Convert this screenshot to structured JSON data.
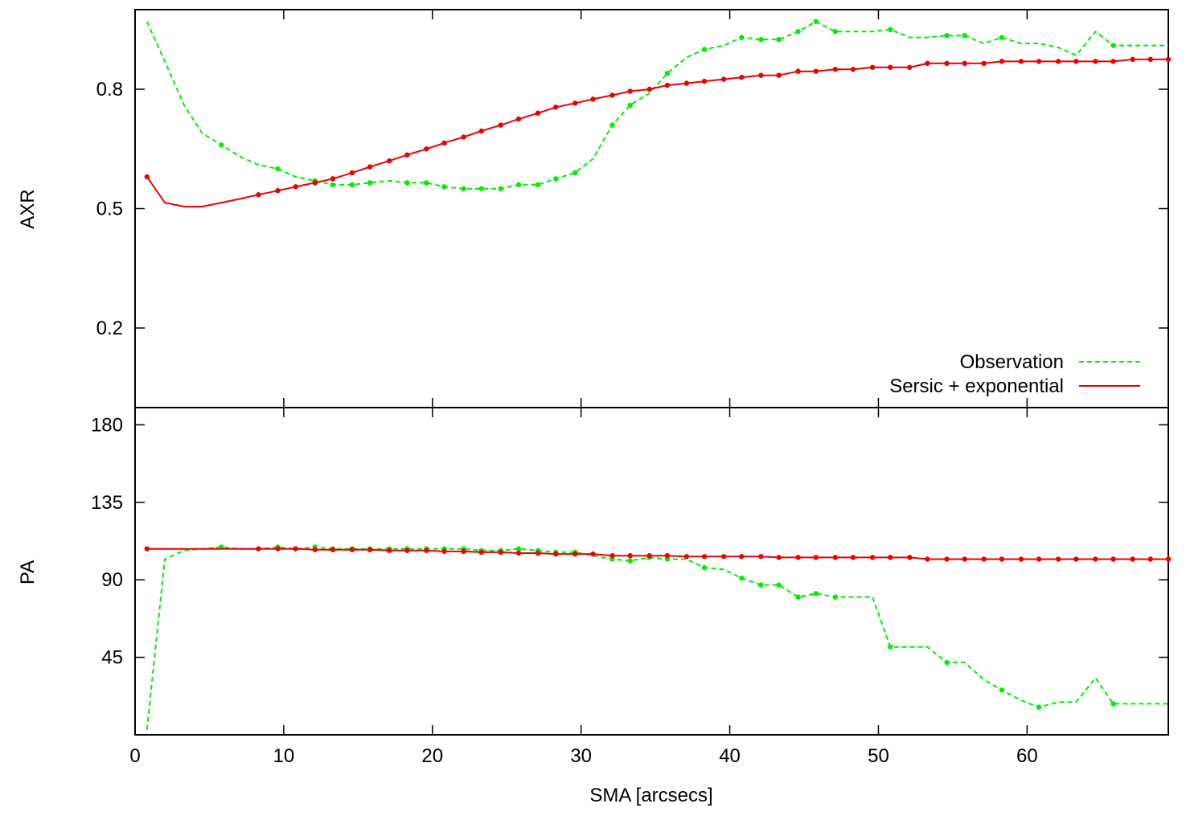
{
  "chart_data": [
    {
      "type": "line",
      "panel": "top",
      "ylabel": "AXR",
      "xlabel": "",
      "xlim": [
        0,
        69.5
      ],
      "ylim": [
        0.0,
        1.0
      ],
      "yticks": [
        0.2,
        0.5,
        0.8
      ],
      "ytick_labels": [
        "0.2",
        "0.5",
        "0.8"
      ],
      "xticks": [
        0,
        10,
        20,
        30,
        40,
        50,
        60
      ],
      "xtick_labels": [
        "",
        "",
        "",
        "",
        "",
        "",
        ""
      ],
      "grid": false,
      "legend_position": "bottom-right",
      "legend": [
        {
          "name": "Observation",
          "style": "dashed",
          "color": "#00ee00"
        },
        {
          "name": "Sersic + exponential",
          "style": "solid",
          "color": "#ee0000"
        }
      ],
      "series": [
        {
          "name": "Observation",
          "color": "#00ee00",
          "dash": "6,4",
          "x": [
            0.8,
            2.0,
            3.3,
            4.5,
            5.8,
            7.1,
            8.3,
            9.6,
            10.8,
            12.1,
            13.3,
            14.6,
            15.8,
            17.1,
            18.3,
            19.6,
            20.8,
            22.1,
            23.3,
            24.6,
            25.8,
            27.1,
            28.3,
            29.6,
            30.8,
            32.1,
            33.3,
            34.6,
            35.8,
            37.1,
            38.3,
            39.6,
            40.8,
            42.1,
            43.3,
            44.6,
            45.8,
            47.1,
            48.3,
            49.6,
            50.8,
            52.1,
            53.3,
            54.6,
            55.8,
            57.1,
            58.3,
            59.6,
            60.8,
            62.1,
            63.3,
            64.6,
            65.8,
            67.1,
            68.3,
            69.5
          ],
          "y": [
            0.97,
            0.87,
            0.76,
            0.69,
            0.66,
            0.63,
            0.61,
            0.6,
            0.58,
            0.57,
            0.56,
            0.56,
            0.565,
            0.57,
            0.565,
            0.565,
            0.555,
            0.55,
            0.55,
            0.55,
            0.56,
            0.56,
            0.575,
            0.59,
            0.625,
            0.71,
            0.76,
            0.79,
            0.84,
            0.88,
            0.9,
            0.91,
            0.93,
            0.925,
            0.925,
            0.945,
            0.97,
            0.945,
            0.945,
            0.945,
            0.95,
            0.93,
            0.93,
            0.935,
            0.935,
            0.915,
            0.93,
            0.915,
            0.915,
            0.905,
            0.885,
            0.945,
            0.91,
            0.91,
            0.91,
            0.91
          ],
          "markers": [
            false,
            false,
            false,
            false,
            true,
            false,
            false,
            true,
            false,
            true,
            true,
            true,
            true,
            false,
            true,
            true,
            true,
            true,
            true,
            true,
            true,
            true,
            true,
            true,
            false,
            true,
            true,
            false,
            true,
            false,
            true,
            false,
            true,
            true,
            true,
            true,
            true,
            true,
            false,
            false,
            true,
            false,
            false,
            true,
            true,
            false,
            true,
            false,
            false,
            false,
            false,
            false,
            true,
            false,
            false,
            false
          ]
        },
        {
          "name": "Sersic + exponential",
          "color": "#ee0000",
          "dash": "",
          "x": [
            0.8,
            2.0,
            3.3,
            4.5,
            5.8,
            7.1,
            8.3,
            9.6,
            10.8,
            12.1,
            13.3,
            14.6,
            15.8,
            17.1,
            18.3,
            19.6,
            20.8,
            22.1,
            23.3,
            24.6,
            25.8,
            27.1,
            28.3,
            29.6,
            30.8,
            32.1,
            33.3,
            34.6,
            35.8,
            37.1,
            38.3,
            39.6,
            40.8,
            42.1,
            43.3,
            44.6,
            45.8,
            47.1,
            48.3,
            49.6,
            50.8,
            52.1,
            53.3,
            54.6,
            55.8,
            57.1,
            58.3,
            59.6,
            60.8,
            62.1,
            63.3,
            64.6,
            65.8,
            67.1,
            68.3,
            69.5
          ],
          "y": [
            0.58,
            0.515,
            0.505,
            0.505,
            0.515,
            0.525,
            0.535,
            0.545,
            0.555,
            0.565,
            0.575,
            0.59,
            0.605,
            0.62,
            0.635,
            0.65,
            0.665,
            0.68,
            0.695,
            0.71,
            0.725,
            0.74,
            0.755,
            0.765,
            0.775,
            0.785,
            0.795,
            0.8,
            0.81,
            0.815,
            0.82,
            0.825,
            0.83,
            0.835,
            0.835,
            0.845,
            0.845,
            0.85,
            0.85,
            0.855,
            0.855,
            0.855,
            0.865,
            0.865,
            0.865,
            0.865,
            0.87,
            0.87,
            0.87,
            0.87,
            0.87,
            0.87,
            0.87,
            0.875,
            0.875,
            0.875
          ],
          "markers": [
            true,
            false,
            false,
            false,
            false,
            false,
            true,
            true,
            true,
            true,
            true,
            true,
            true,
            true,
            true,
            true,
            true,
            true,
            true,
            true,
            true,
            true,
            true,
            true,
            true,
            true,
            true,
            true,
            true,
            true,
            true,
            true,
            true,
            true,
            true,
            true,
            true,
            true,
            true,
            true,
            true,
            true,
            true,
            true,
            true,
            true,
            true,
            true,
            true,
            true,
            true,
            true,
            true,
            true,
            true,
            true
          ]
        }
      ]
    },
    {
      "type": "line",
      "panel": "bottom",
      "ylabel": "PA",
      "xlabel": "SMA [arcsecs]",
      "xlim": [
        0,
        69.5
      ],
      "ylim": [
        0,
        190
      ],
      "yticks": [
        45,
        90,
        135,
        180
      ],
      "ytick_labels": [
        "45",
        "90",
        "135",
        "180"
      ],
      "xticks": [
        0,
        10,
        20,
        30,
        40,
        50,
        60
      ],
      "xtick_labels": [
        "0",
        "10",
        "20",
        "30",
        "40",
        "50",
        "60"
      ],
      "grid": false,
      "series": [
        {
          "name": "Observation",
          "color": "#00ee00",
          "dash": "6,4",
          "x": [
            0.8,
            2.0,
            3.3,
            4.5,
            5.8,
            7.1,
            8.3,
            9.6,
            10.8,
            12.1,
            13.3,
            14.6,
            15.8,
            17.1,
            18.3,
            19.6,
            20.8,
            22.1,
            23.3,
            24.6,
            25.8,
            27.1,
            28.3,
            29.6,
            30.8,
            32.1,
            33.3,
            34.6,
            35.8,
            37.1,
            38.3,
            39.6,
            40.8,
            42.1,
            43.3,
            44.6,
            45.8,
            47.1,
            48.3,
            49.6,
            50.8,
            52.1,
            53.3,
            54.6,
            55.8,
            57.1,
            58.3,
            59.6,
            60.8,
            62.1,
            63.3,
            64.6,
            65.8,
            67.1,
            68.3,
            69.5
          ],
          "y": [
            3,
            102,
            107,
            108,
            109,
            108,
            108,
            109,
            108,
            109,
            108,
            108,
            108,
            108,
            108,
            108,
            108,
            108,
            107,
            107,
            108,
            107,
            106,
            106,
            104,
            102,
            101,
            103,
            102,
            102,
            97,
            96,
            91,
            87,
            87,
            80,
            82,
            80,
            80,
            80,
            51,
            51,
            51,
            42,
            42,
            32,
            26,
            20,
            16,
            19,
            19,
            33,
            18,
            18,
            18,
            18
          ],
          "markers": [
            false,
            false,
            false,
            false,
            true,
            false,
            true,
            true,
            true,
            true,
            true,
            true,
            true,
            true,
            true,
            true,
            true,
            true,
            true,
            true,
            true,
            true,
            true,
            true,
            false,
            true,
            true,
            true,
            true,
            false,
            true,
            false,
            true,
            true,
            true,
            true,
            true,
            true,
            false,
            false,
            true,
            false,
            false,
            true,
            false,
            false,
            true,
            false,
            true,
            false,
            false,
            false,
            true,
            false,
            false,
            false
          ]
        },
        {
          "name": "Sersic + exponential",
          "color": "#ee0000",
          "dash": "",
          "x": [
            0.8,
            2.0,
            3.3,
            4.5,
            5.8,
            7.1,
            8.3,
            9.6,
            10.8,
            12.1,
            13.3,
            14.6,
            15.8,
            17.1,
            18.3,
            19.6,
            20.8,
            22.1,
            23.3,
            24.6,
            25.8,
            27.1,
            28.3,
            29.6,
            30.8,
            32.1,
            33.3,
            34.6,
            35.8,
            37.1,
            38.3,
            39.6,
            40.8,
            42.1,
            43.3,
            44.6,
            45.8,
            47.1,
            48.3,
            49.6,
            50.8,
            52.1,
            53.3,
            54.6,
            55.8,
            57.1,
            58.3,
            59.6,
            60.8,
            62.1,
            63.3,
            64.6,
            65.8,
            67.1,
            68.3,
            69.5
          ],
          "y": [
            108,
            108,
            108,
            108,
            108,
            108,
            108,
            108,
            108,
            107.5,
            107.5,
            107.5,
            107.5,
            107,
            107,
            107,
            106.5,
            106.5,
            106,
            106,
            105.5,
            105.5,
            105,
            105,
            105,
            104,
            104,
            104,
            104,
            103.5,
            103.5,
            103.5,
            103.5,
            103.5,
            103,
            103,
            103,
            103,
            103,
            103,
            103,
            103,
            102,
            102,
            102,
            102,
            102,
            102,
            102,
            102,
            102,
            102,
            102,
            102,
            102,
            102
          ],
          "markers": [
            true,
            false,
            false,
            false,
            false,
            false,
            true,
            true,
            true,
            true,
            true,
            true,
            true,
            true,
            true,
            true,
            true,
            true,
            true,
            true,
            true,
            true,
            true,
            true,
            true,
            true,
            true,
            true,
            true,
            true,
            true,
            true,
            true,
            true,
            true,
            true,
            true,
            true,
            true,
            true,
            true,
            true,
            true,
            true,
            true,
            true,
            true,
            true,
            true,
            true,
            true,
            true,
            true,
            true,
            true,
            true
          ]
        }
      ]
    }
  ]
}
